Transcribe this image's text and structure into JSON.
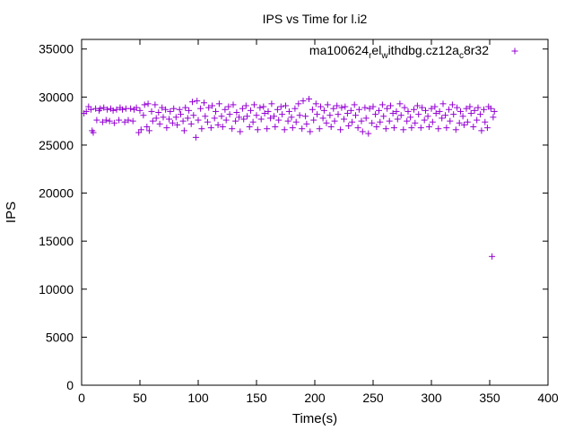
{
  "chart_data": {
    "type": "scatter",
    "title": "IPS vs Time for l.i2",
    "xlabel": "Time(s)",
    "ylabel": "IPS",
    "xlim": [
      0,
      400
    ],
    "ylim": [
      0,
      36000
    ],
    "xticks": [
      0,
      50,
      100,
      150,
      200,
      250,
      300,
      350,
      400
    ],
    "yticks": [
      0,
      5000,
      10000,
      15000,
      20000,
      25000,
      30000,
      35000
    ],
    "grid": false,
    "legend_position": "top-right",
    "series": [
      {
        "legend_base": "ma100624",
        "legend_sub1": "r",
        "legend_mid": "el",
        "legend_sub2": "w",
        "legend_mid2": "ithdbg.cz12a",
        "legend_sub3": "c",
        "legend_end": "8r32",
        "color": "#9400d3",
        "marker": "plus",
        "points": [
          [
            2,
            28300
          ],
          [
            4,
            28500
          ],
          [
            6,
            29000
          ],
          [
            8,
            28700
          ],
          [
            9,
            26500
          ],
          [
            10,
            26300
          ],
          [
            12,
            28800
          ],
          [
            13,
            27600
          ],
          [
            15,
            28600
          ],
          [
            16,
            28800
          ],
          [
            18,
            27400
          ],
          [
            19,
            28900
          ],
          [
            21,
            27600
          ],
          [
            22,
            28700
          ],
          [
            24,
            27500
          ],
          [
            25,
            28800
          ],
          [
            27,
            28600
          ],
          [
            28,
            27300
          ],
          [
            30,
            28700
          ],
          [
            32,
            27600
          ],
          [
            33,
            28900
          ],
          [
            35,
            28700
          ],
          [
            37,
            27400
          ],
          [
            38,
            28800
          ],
          [
            40,
            27600
          ],
          [
            42,
            28800
          ],
          [
            44,
            27500
          ],
          [
            45,
            28700
          ],
          [
            47,
            28900
          ],
          [
            49,
            26300
          ],
          [
            50,
            28600
          ],
          [
            51,
            26600
          ],
          [
            53,
            28100
          ],
          [
            54,
            29200
          ],
          [
            56,
            26900
          ],
          [
            57,
            29300
          ],
          [
            58,
            26500
          ],
          [
            60,
            28500
          ],
          [
            61,
            27500
          ],
          [
            63,
            29200
          ],
          [
            64,
            27800
          ],
          [
            66,
            28400
          ],
          [
            67,
            27200
          ],
          [
            69,
            28900
          ],
          [
            70,
            27900
          ],
          [
            72,
            28700
          ],
          [
            73,
            26800
          ],
          [
            75,
            27700
          ],
          [
            76,
            28500
          ],
          [
            78,
            27300
          ],
          [
            79,
            28800
          ],
          [
            81,
            27900
          ],
          [
            82,
            27100
          ],
          [
            84,
            28700
          ],
          [
            85,
            28200
          ],
          [
            87,
            27500
          ],
          [
            88,
            26500
          ],
          [
            89,
            28900
          ],
          [
            91,
            27800
          ],
          [
            92,
            28600
          ],
          [
            94,
            27200
          ],
          [
            95,
            29500
          ],
          [
            96,
            28100
          ],
          [
            98,
            25800
          ],
          [
            99,
            29600
          ],
          [
            100,
            27600
          ],
          [
            102,
            28800
          ],
          [
            103,
            26700
          ],
          [
            105,
            29400
          ],
          [
            106,
            28000
          ],
          [
            108,
            27400
          ],
          [
            109,
            28900
          ],
          [
            111,
            26800
          ],
          [
            112,
            29100
          ],
          [
            114,
            27800
          ],
          [
            115,
            28500
          ],
          [
            117,
            27100
          ],
          [
            118,
            29300
          ],
          [
            120,
            28000
          ],
          [
            121,
            26900
          ],
          [
            123,
            28700
          ],
          [
            124,
            27600
          ],
          [
            126,
            29000
          ],
          [
            127,
            28200
          ],
          [
            129,
            26700
          ],
          [
            130,
            29200
          ],
          [
            132,
            27500
          ],
          [
            133,
            28400
          ],
          [
            135,
            27900
          ],
          [
            136,
            26400
          ],
          [
            138,
            28800
          ],
          [
            139,
            27700
          ],
          [
            141,
            29100
          ],
          [
            142,
            28000
          ],
          [
            144,
            26900
          ],
          [
            145,
            28600
          ],
          [
            147,
            27400
          ],
          [
            148,
            29200
          ],
          [
            150,
            28100
          ],
          [
            151,
            26600
          ],
          [
            153,
            28900
          ],
          [
            154,
            27700
          ],
          [
            156,
            29000
          ],
          [
            157,
            28300
          ],
          [
            159,
            26700
          ],
          [
            160,
            28500
          ],
          [
            162,
            27800
          ],
          [
            163,
            29300
          ],
          [
            165,
            28000
          ],
          [
            166,
            26900
          ],
          [
            168,
            28700
          ],
          [
            169,
            27600
          ],
          [
            171,
            29000
          ],
          [
            172,
            28200
          ],
          [
            174,
            26600
          ],
          [
            175,
            29100
          ],
          [
            177,
            27500
          ],
          [
            178,
            28500
          ],
          [
            180,
            27900
          ],
          [
            181,
            26800
          ],
          [
            183,
            28800
          ],
          [
            184,
            27400
          ],
          [
            186,
            29300
          ],
          [
            187,
            28100
          ],
          [
            189,
            26700
          ],
          [
            190,
            29600
          ],
          [
            192,
            28000
          ],
          [
            193,
            27200
          ],
          [
            195,
            29800
          ],
          [
            196,
            26400
          ],
          [
            198,
            28700
          ],
          [
            199,
            27600
          ],
          [
            201,
            29300
          ],
          [
            202,
            28200
          ],
          [
            204,
            26700
          ],
          [
            205,
            29000
          ],
          [
            207,
            27800
          ],
          [
            208,
            28600
          ],
          [
            210,
            27300
          ],
          [
            211,
            29200
          ],
          [
            213,
            28100
          ],
          [
            214,
            26900
          ],
          [
            216,
            28800
          ],
          [
            217,
            27500
          ],
          [
            219,
            29100
          ],
          [
            220,
            28200
          ],
          [
            222,
            26600
          ],
          [
            223,
            28900
          ],
          [
            225,
            27700
          ],
          [
            226,
            29000
          ],
          [
            228,
            28300
          ],
          [
            229,
            27000
          ],
          [
            231,
            28600
          ],
          [
            232,
            27400
          ],
          [
            234,
            29200
          ],
          [
            235,
            28100
          ],
          [
            237,
            26800
          ],
          [
            238,
            28700
          ],
          [
            240,
            27500
          ],
          [
            241,
            26400
          ],
          [
            243,
            28900
          ],
          [
            244,
            27800
          ],
          [
            246,
            26200
          ],
          [
            247,
            28800
          ],
          [
            249,
            27300
          ],
          [
            250,
            29000
          ],
          [
            252,
            28200
          ],
          [
            253,
            26900
          ],
          [
            255,
            28600
          ],
          [
            256,
            27400
          ],
          [
            258,
            29200
          ],
          [
            259,
            28000
          ],
          [
            261,
            26700
          ],
          [
            262,
            28800
          ],
          [
            264,
            27500
          ],
          [
            265,
            29100
          ],
          [
            267,
            28300
          ],
          [
            268,
            26800
          ],
          [
            270,
            28500
          ],
          [
            271,
            27700
          ],
          [
            273,
            29300
          ],
          [
            274,
            28100
          ],
          [
            276,
            26600
          ],
          [
            277,
            28900
          ],
          [
            279,
            27500
          ],
          [
            280,
            28500
          ],
          [
            282,
            27900
          ],
          [
            283,
            26800
          ],
          [
            285,
            28700
          ],
          [
            286,
            27300
          ],
          [
            288,
            29100
          ],
          [
            289,
            28200
          ],
          [
            291,
            26800
          ],
          [
            292,
            28900
          ],
          [
            294,
            27600
          ],
          [
            295,
            28600
          ],
          [
            297,
            28000
          ],
          [
            298,
            26900
          ],
          [
            300,
            28800
          ],
          [
            301,
            27400
          ],
          [
            303,
            29000
          ],
          [
            304,
            28300
          ],
          [
            306,
            26700
          ],
          [
            307,
            28500
          ],
          [
            309,
            27800
          ],
          [
            310,
            29300
          ],
          [
            312,
            28100
          ],
          [
            313,
            26800
          ],
          [
            315,
            28700
          ],
          [
            316,
            27500
          ],
          [
            318,
            29200
          ],
          [
            319,
            28200
          ],
          [
            321,
            26600
          ],
          [
            322,
            28900
          ],
          [
            324,
            27300
          ],
          [
            325,
            28500
          ],
          [
            327,
            28000
          ],
          [
            328,
            27100
          ],
          [
            330,
            28800
          ],
          [
            331,
            27400
          ],
          [
            333,
            29000
          ],
          [
            334,
            28300
          ],
          [
            336,
            26900
          ],
          [
            337,
            28600
          ],
          [
            339,
            27600
          ],
          [
            340,
            28900
          ],
          [
            342,
            28200
          ],
          [
            343,
            26500
          ],
          [
            345,
            28700
          ],
          [
            346,
            27400
          ],
          [
            348,
            26800
          ],
          [
            349,
            29000
          ],
          [
            351,
            28800
          ],
          [
            352,
            13400
          ],
          [
            353,
            27900
          ],
          [
            354,
            28500
          ]
        ]
      }
    ]
  }
}
